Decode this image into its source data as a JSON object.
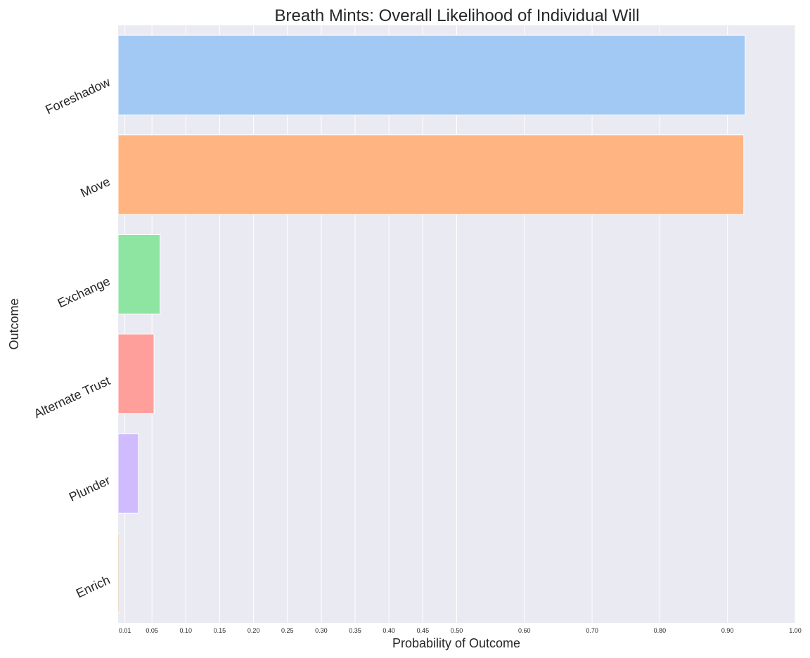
{
  "chart_data": {
    "type": "bar",
    "orientation": "horizontal",
    "title": "Breath Mints: Overall Likelihood of Individual Will",
    "xlabel": "Probability of Outcome",
    "ylabel": "Outcome",
    "xlim": [
      0,
      1.0
    ],
    "xticks": [
      0.01,
      0.05,
      0.1,
      0.15,
      0.2,
      0.25,
      0.3,
      0.35,
      0.4,
      0.45,
      0.5,
      0.6,
      0.7,
      0.8,
      0.9,
      1.0
    ],
    "xtick_labels": [
      "0.01",
      "0.05",
      "0.10",
      "0.15",
      "0.20",
      "0.25",
      "0.30",
      "0.35",
      "0.40",
      "0.45",
      "0.50",
      "0.60",
      "0.70",
      "0.80",
      "0.90",
      "1.00"
    ],
    "categories": [
      "Foreshadow",
      "Move",
      "Exchange",
      "Alternate Trust",
      "Plunder",
      "Enrich"
    ],
    "values": [
      0.926,
      0.924,
      0.062,
      0.053,
      0.03,
      0.002
    ],
    "colors": [
      "#a1c9f4",
      "#ffb482",
      "#8de5a1",
      "#ff9f9b",
      "#d0bbff",
      "#debb9b"
    ],
    "grid": true,
    "background": "#eaeaf2"
  }
}
